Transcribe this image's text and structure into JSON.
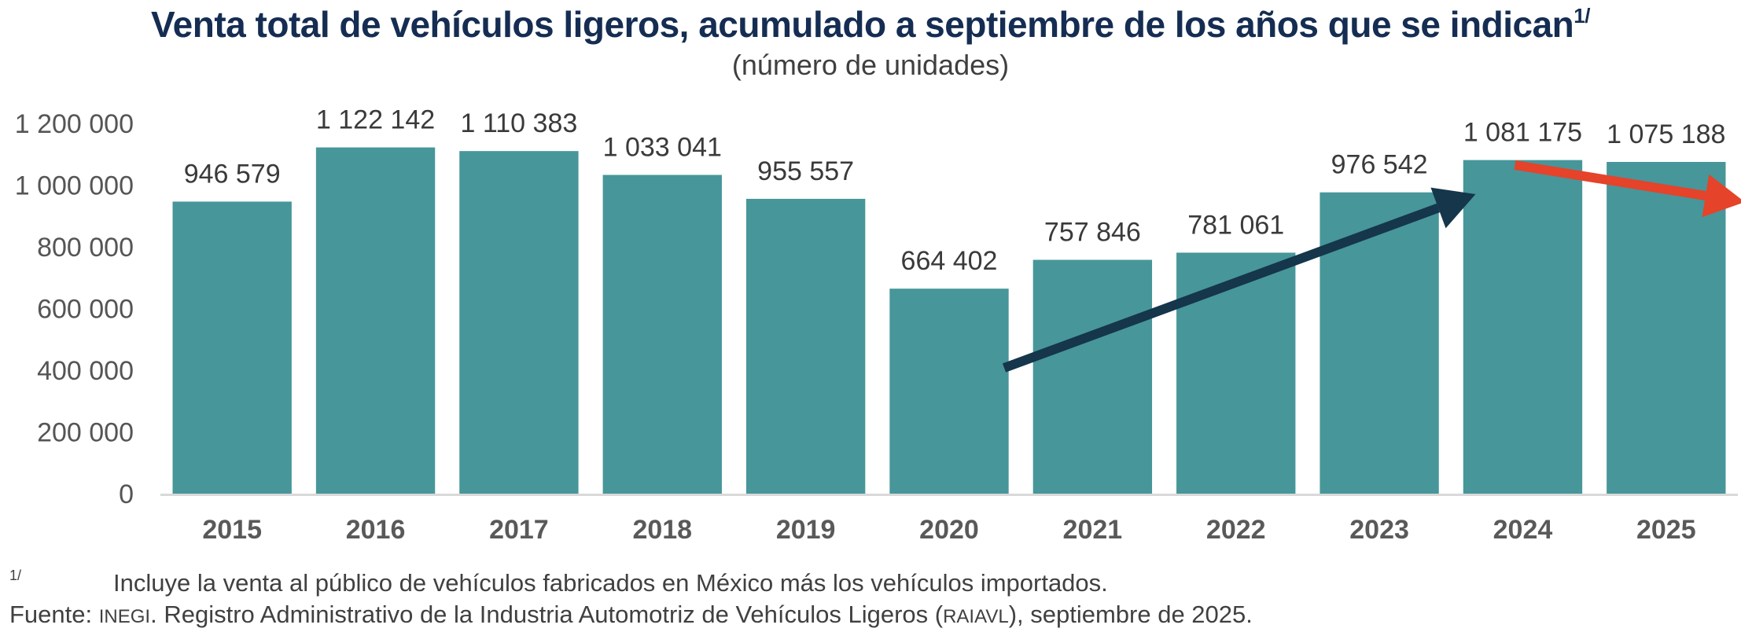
{
  "chart_data": {
    "type": "bar",
    "title": "Venta total de vehículos ligeros, acumulado a septiembre de los años que se indican",
    "title_footnote_marker": "1/",
    "subtitle": "(número de unidades)",
    "xlabel": "",
    "ylabel": "",
    "categories": [
      "2015",
      "2016",
      "2017",
      "2018",
      "2019",
      "2020",
      "2021",
      "2022",
      "2023",
      "2024",
      "2025"
    ],
    "values": [
      946579,
      1122142,
      1110383,
      1033041,
      955557,
      664402,
      757846,
      781061,
      976542,
      1081175,
      1075188
    ],
    "data_labels": [
      "946 579",
      "1 122 142",
      "1 110 383",
      "1 033 041",
      "955 557",
      "664 402",
      "757 846",
      "781 061",
      "976 542",
      "1 081 175",
      "1 075 188"
    ],
    "ylim": [
      0,
      1200000
    ],
    "yticks": [
      0,
      200000,
      400000,
      600000,
      800000,
      1000000,
      1200000
    ],
    "ytick_labels": [
      "0",
      "200 000",
      "400 000",
      "600 000",
      "800 000",
      "1 000 000",
      "1 200 000"
    ],
    "grid": false,
    "legend": "none",
    "bar_color": "#47969a",
    "annotations": [
      {
        "type": "arrow",
        "meaning": "upward trend",
        "from_category": "2020",
        "to_category": "2024",
        "color": "#15364b"
      },
      {
        "type": "arrow",
        "meaning": "downward trend",
        "from_category": "2024",
        "to_category": "2025",
        "color": "#e5432a"
      }
    ]
  },
  "footnotes": {
    "note_marker": "1/",
    "note_text": "Incluye la venta al público de vehículos fabricados en México más los vehículos importados.",
    "source_prefix": "Fuente: ",
    "source_org": "INEGI",
    "source_mid": ". Registro Administrativo de la Industria Automotriz de Vehículos Ligeros (",
    "source_acronym": "RAIAVL",
    "source_suffix": "), septiembre de 2025."
  }
}
